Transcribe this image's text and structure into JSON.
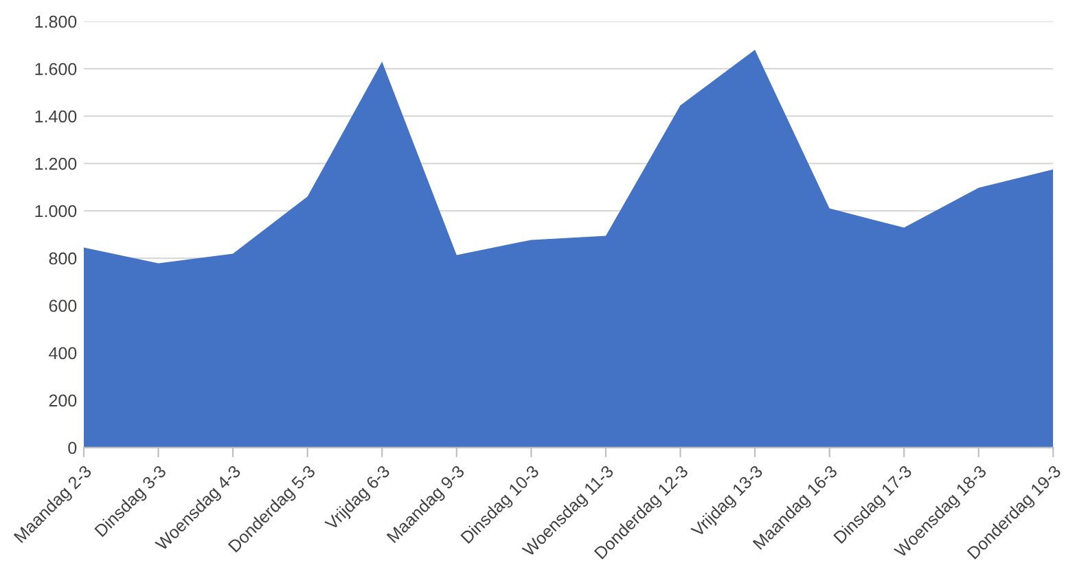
{
  "chart_data": {
    "type": "area",
    "categories": [
      "Maandag 2-3",
      "Dinsdag 3-3",
      "Woensdag 4-3",
      "Donderdag 5-3",
      "Vrijdag 6-3",
      "Maandag 9-3",
      "Dinsdag 10-3",
      "Woensdag 11-3",
      "Donderdag 12-3",
      "Vrijdag 13-3",
      "Maandag 16-3",
      "Dinsdag 17-3",
      "Woensdag 18-3",
      "Donderdag 19-3"
    ],
    "series": [
      {
        "color": "#4472c4",
        "values": [
          845,
          778,
          819,
          1060,
          1630,
          813,
          877,
          894,
          1445,
          1680,
          1010,
          929,
          1097,
          1175
        ]
      }
    ],
    "ylim": [
      0,
      1800
    ],
    "yticks": [
      0,
      200,
      400,
      600,
      800,
      {
        "value": 1000,
        "label": "1.000"
      },
      {
        "value": 1200,
        "label": "1.200"
      },
      {
        "value": 1400,
        "label": "1.400"
      },
      {
        "value": 1600,
        "label": "1.600"
      },
      {
        "value": 1800,
        "label": "1.800"
      }
    ],
    "grid": "y",
    "legend": false
  }
}
